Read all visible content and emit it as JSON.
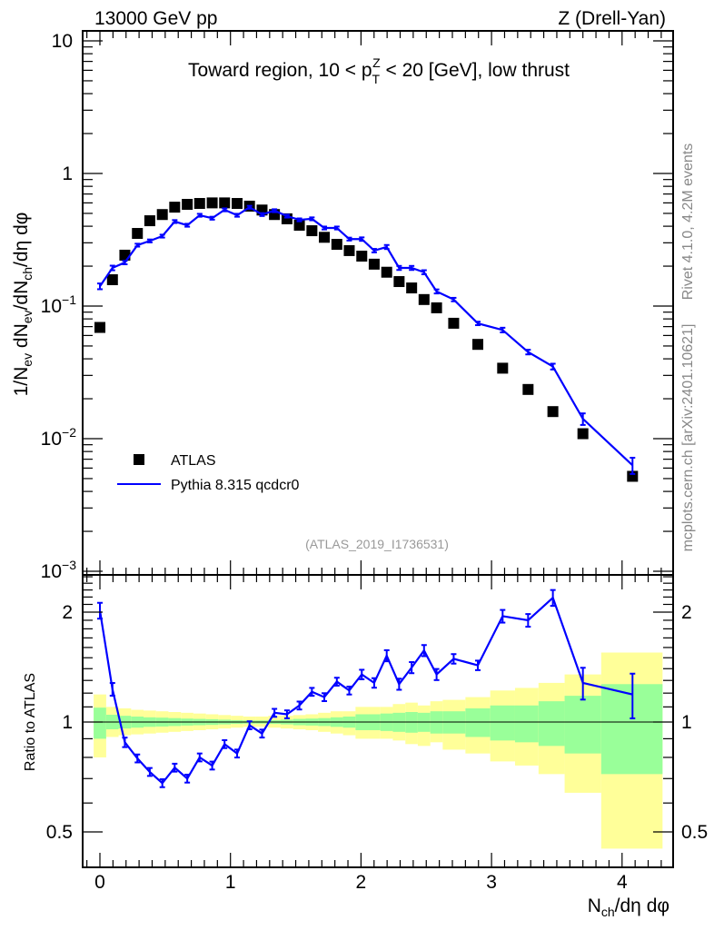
{
  "header": {
    "energy_label": "13000 GeV pp",
    "process_label": "Z (Drell-Yan)"
  },
  "side_labels": {
    "rivet": "Rivet 4.1.0,  4.2M events",
    "mcplots": "mcplots.cern.ch [arXiv:2401.10621]"
  },
  "analysis_id": "(ATLAS_2019_I1736531)",
  "colors": {
    "data": "#000000",
    "mc": "#0000ff",
    "band_inner": "#99ff99",
    "band_outer": "#ffff99"
  },
  "chart_data": {
    "type": "scatter+line",
    "title": {
      "pre": "Toward region, 10 < p",
      "sub": "T",
      "sup": "Z",
      "post": " < 20 [GeV], low thrust"
    },
    "xlabel": {
      "main": "N",
      "sub": "ch",
      "post": "/dη dφ"
    },
    "ylabel": {
      "p1": "1/N",
      "s1": "ev",
      "p2": " dN",
      "s2": "ev",
      "p3": "/dN",
      "s3": "ch",
      "p4": "/dη dφ"
    },
    "ratio_ylabel": "Ratio to ATLAS",
    "xlim": [
      -0.125,
      4.39
    ],
    "ylim": [
      0.001,
      11.5
    ],
    "yscale": "log",
    "ratio_ylim": [
      0.4,
      2.57
    ],
    "ratio_yscale": "log",
    "x_ticks": [
      {
        "v": 0,
        "label": "0"
      },
      {
        "v": 1,
        "label": "1"
      },
      {
        "v": 2,
        "label": "2"
      },
      {
        "v": 3,
        "label": "3"
      },
      {
        "v": 4,
        "label": "4"
      }
    ],
    "y_ticks": [
      {
        "v": 10,
        "base": "10",
        "exp": ""
      },
      {
        "v": 1,
        "base": "1",
        "exp": ""
      },
      {
        "v": 0.1,
        "base": "10",
        "exp": "−1"
      },
      {
        "v": 0.01,
        "base": "10",
        "exp": "−2"
      },
      {
        "v": 0.001,
        "base": "10",
        "exp": "−3"
      }
    ],
    "ratio_ticks": [
      {
        "v": 2,
        "label": "2"
      },
      {
        "v": 1,
        "label": "1"
      },
      {
        "v": 0.5,
        "label": "0.5"
      }
    ],
    "legend": {
      "placement": "bottom-left",
      "entries": [
        "ATLAS",
        "Pythia 8.315 qcdcr0"
      ]
    },
    "x": [
      0,
      0.096,
      0.191,
      0.287,
      0.382,
      0.478,
      0.573,
      0.669,
      0.764,
      0.86,
      0.955,
      1.051,
      1.146,
      1.242,
      1.337,
      1.433,
      1.528,
      1.624,
      1.719,
      1.815,
      1.91,
      2.006,
      2.101,
      2.197,
      2.292,
      2.388,
      2.483,
      2.579,
      2.71,
      2.895,
      3.085,
      3.28,
      3.47,
      3.7,
      4.08
    ],
    "x_edges": [
      -0.048,
      0.048,
      0.143,
      0.239,
      0.334,
      0.43,
      0.525,
      0.621,
      0.716,
      0.812,
      0.907,
      1.003,
      1.098,
      1.194,
      1.289,
      1.385,
      1.48,
      1.576,
      1.671,
      1.767,
      1.862,
      1.958,
      2.053,
      2.149,
      2.244,
      2.34,
      2.435,
      2.531,
      2.626,
      2.8,
      2.99,
      3.18,
      3.36,
      3.56,
      3.84,
      4.31
    ],
    "series": [
      {
        "name": "ATLAS",
        "values": [
          0.069,
          0.158,
          0.242,
          0.353,
          0.44,
          0.49,
          0.557,
          0.585,
          0.594,
          0.6,
          0.6,
          0.594,
          0.567,
          0.53,
          0.49,
          0.455,
          0.407,
          0.37,
          0.33,
          0.292,
          0.262,
          0.238,
          0.207,
          0.18,
          0.153,
          0.137,
          0.112,
          0.097,
          0.0742,
          0.0514,
          0.034,
          0.0235,
          0.016,
          0.0109,
          0.0052
        ]
      },
      {
        "name": "Pythia 8.315 qcdcr0",
        "values": [
          0.141,
          0.194,
          0.213,
          0.288,
          0.31,
          0.337,
          0.434,
          0.407,
          0.484,
          0.46,
          0.532,
          0.484,
          0.556,
          0.49,
          0.524,
          0.477,
          0.447,
          0.455,
          0.388,
          0.388,
          0.32,
          0.32,
          0.262,
          0.279,
          0.194,
          0.194,
          0.18,
          0.129,
          0.112,
          0.074,
          0.066,
          0.045,
          0.035,
          0.0141,
          0.0063
        ],
        "rel_err": [
          0.05,
          0.04,
          0.03,
          0.025,
          0.025,
          0.025,
          0.025,
          0.025,
          0.025,
          0.025,
          0.025,
          0.025,
          0.025,
          0.025,
          0.025,
          0.025,
          0.025,
          0.025,
          0.025,
          0.025,
          0.025,
          0.03,
          0.03,
          0.035,
          0.035,
          0.035,
          0.035,
          0.035,
          0.03,
          0.03,
          0.04,
          0.04,
          0.05,
          0.1,
          0.14
        ]
      }
    ],
    "ratio": [
      2.02,
      1.23,
      0.88,
      0.795,
      0.73,
      0.68,
      0.75,
      0.7,
      0.8,
      0.76,
      0.87,
      0.82,
      0.98,
      0.93,
      1.06,
      1.05,
      1.11,
      1.21,
      1.17,
      1.29,
      1.22,
      1.35,
      1.28,
      1.52,
      1.27,
      1.41,
      1.57,
      1.35,
      1.49,
      1.43,
      1.95,
      1.9,
      2.19,
      1.28,
      1.19
    ],
    "bands": {
      "outer_up": [
        1.19,
        1.1,
        1.09,
        1.08,
        1.075,
        1.07,
        1.065,
        1.06,
        1.055,
        1.05,
        1.045,
        1.04,
        1.035,
        1.035,
        1.04,
        1.04,
        1.045,
        1.05,
        1.06,
        1.07,
        1.07,
        1.1,
        1.1,
        1.1,
        1.12,
        1.13,
        1.11,
        1.14,
        1.15,
        1.17,
        1.22,
        1.24,
        1.28,
        1.35,
        1.55
      ],
      "outer_down": [
        0.8,
        0.91,
        0.92,
        0.925,
        0.93,
        0.935,
        0.94,
        0.945,
        0.95,
        0.955,
        0.96,
        0.965,
        0.97,
        0.97,
        0.965,
        0.96,
        0.955,
        0.95,
        0.94,
        0.93,
        0.92,
        0.9,
        0.9,
        0.9,
        0.89,
        0.87,
        0.86,
        0.88,
        0.84,
        0.82,
        0.78,
        0.76,
        0.72,
        0.64,
        0.45
      ],
      "inner_up": [
        1.095,
        1.047,
        1.04,
        1.035,
        1.03,
        1.028,
        1.025,
        1.022,
        1.02,
        1.018,
        1.015,
        1.012,
        1.01,
        1.01,
        1.012,
        1.015,
        1.02,
        1.022,
        1.025,
        1.03,
        1.035,
        1.05,
        1.05,
        1.055,
        1.06,
        1.065,
        1.06,
        1.07,
        1.07,
        1.09,
        1.11,
        1.11,
        1.14,
        1.18,
        1.27
      ],
      "inner_down": [
        0.9,
        0.955,
        0.96,
        0.965,
        0.97,
        0.972,
        0.975,
        0.978,
        0.98,
        0.982,
        0.985,
        0.988,
        0.99,
        0.99,
        0.988,
        0.985,
        0.98,
        0.978,
        0.975,
        0.97,
        0.965,
        0.95,
        0.95,
        0.945,
        0.94,
        0.935,
        0.94,
        0.93,
        0.93,
        0.91,
        0.89,
        0.88,
        0.86,
        0.82,
        0.72
      ]
    }
  }
}
